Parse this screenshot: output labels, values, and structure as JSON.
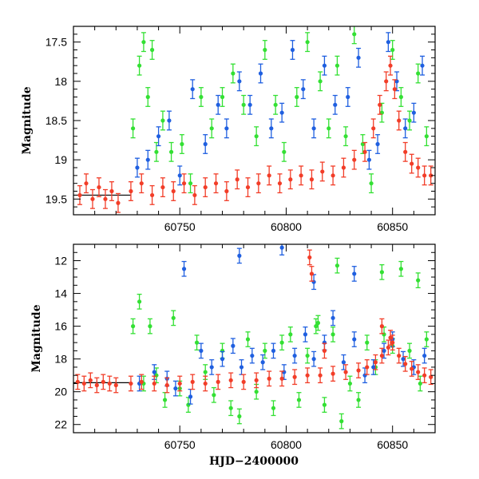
{
  "colors": {
    "blue": "#1f5fe0",
    "green": "#33e033",
    "red": "#f23d28",
    "baseline": "#000000"
  },
  "chart_data": [
    {
      "type": "scatter",
      "title": "",
      "xlabel": "",
      "ylabel": "Magnitude",
      "xlim": [
        60700,
        60870
      ],
      "ylim": [
        17.3,
        19.7
      ],
      "y_inverted": true,
      "xticks": [
        "60750",
        "60800",
        "60850"
      ],
      "yticks": [
        "17.5",
        "18",
        "18.5",
        "19",
        "19.5"
      ],
      "error_bars": true,
      "baseline_magnitude": 19.45,
      "series_colors": [
        "#33e033",
        "#1f5fe0",
        "#f23d28"
      ],
      "series": [
        {
          "color": "#33e033",
          "x": [
            60728,
            60731,
            60733,
            60735,
            60737,
            60739,
            60742,
            60746,
            60751,
            60755,
            60760,
            60765,
            60770,
            60775,
            60780,
            60786,
            60790,
            60795,
            60799,
            60805,
            60810,
            60816,
            60820,
            60824,
            60828,
            60832,
            60836,
            60840,
            60845,
            60850,
            60854,
            60858,
            60862,
            60866
          ],
          "y": [
            18.6,
            17.8,
            17.5,
            18.2,
            17.6,
            18.9,
            18.5,
            18.9,
            18.8,
            19.3,
            18.2,
            18.6,
            18.2,
            17.9,
            18.3,
            18.7,
            17.6,
            18.3,
            18.9,
            18.2,
            17.5,
            18.0,
            18.6,
            17.8,
            18.7,
            17.4,
            18.8,
            19.3,
            18.4,
            17.6,
            18.2,
            18.5,
            17.9,
            18.7
          ]
        },
        {
          "color": "#1f5fe0",
          "x": [
            60730,
            60735,
            60740,
            60745,
            60750,
            60756,
            60762,
            60768,
            60772,
            60778,
            60783,
            60788,
            60793,
            60798,
            60803,
            60808,
            60813,
            60818,
            60823,
            60829,
            60834,
            60839,
            60843,
            60848,
            60852,
            60856,
            60860,
            60864
          ],
          "y": [
            19.1,
            19.0,
            18.7,
            18.5,
            19.2,
            18.1,
            18.8,
            18.3,
            18.6,
            18.0,
            18.3,
            17.9,
            18.6,
            18.4,
            17.6,
            18.1,
            18.6,
            17.8,
            18.3,
            18.2,
            17.7,
            19.0,
            18.8,
            17.5,
            18.0,
            18.6,
            18.4,
            17.8
          ]
        },
        {
          "color": "#f23d28",
          "x": [
            60703,
            60706,
            60709,
            60712,
            60715,
            60718,
            60721,
            60727,
            60732,
            60737,
            60742,
            60747,
            60752,
            60757,
            60762,
            60767,
            60772,
            60777,
            60782,
            60787,
            60792,
            60797,
            60802,
            60807,
            60812,
            60817,
            60822,
            60827,
            60832,
            60837,
            60841,
            60844,
            60847,
            60849,
            60851,
            60853,
            60856,
            60859,
            60862,
            60865,
            60868
          ],
          "y": [
            19.45,
            19.3,
            19.5,
            19.35,
            19.5,
            19.4,
            19.55,
            19.4,
            19.3,
            19.45,
            19.35,
            19.4,
            19.3,
            19.45,
            19.35,
            19.3,
            19.4,
            19.25,
            19.35,
            19.3,
            19.2,
            19.3,
            19.25,
            19.2,
            19.25,
            19.15,
            19.2,
            19.1,
            19.0,
            18.9,
            18.6,
            18.3,
            18.0,
            17.8,
            18.1,
            18.5,
            18.9,
            19.05,
            19.1,
            19.2,
            19.2
          ]
        }
      ]
    },
    {
      "type": "scatter",
      "title": "",
      "xlabel": "HJD−2400000",
      "ylabel": "Magnitude",
      "xlim": [
        60700,
        60870
      ],
      "ylim": [
        11,
        22.5
      ],
      "y_inverted": true,
      "xticks": [
        "60750",
        "60800",
        "60850"
      ],
      "yticks": [
        "12",
        "14",
        "16",
        "18",
        "20",
        "22"
      ],
      "error_bars": true,
      "baseline_magnitude": 19.45,
      "series_colors": [
        "#33e033",
        "#1f5fe0",
        "#f23d28"
      ],
      "series": [
        {
          "color": "#33e033",
          "x": [
            60728,
            60731,
            60733,
            60736,
            60739,
            60743,
            60747,
            60750,
            60754,
            60758,
            60762,
            60766,
            60770,
            60774,
            60778,
            60782,
            60786,
            60790,
            60794,
            60798,
            60802,
            60806,
            60810,
            60814,
            60818,
            60822,
            60826,
            60830,
            60834,
            60838,
            60842,
            60846,
            60850,
            60854,
            60858,
            60862,
            60866,
            60824,
            60845,
            60863,
            60815
          ],
          "y": [
            16.0,
            14.5,
            19.5,
            16.0,
            19.0,
            20.5,
            15.5,
            19.8,
            20.8,
            17.0,
            18.8,
            20.2,
            17.5,
            21.0,
            21.5,
            16.8,
            20.0,
            17.5,
            21.0,
            17.0,
            16.5,
            20.5,
            17.8,
            16.0,
            20.8,
            16.5,
            21.8,
            19.5,
            20.5,
            17.0,
            18.5,
            16.5,
            17.2,
            12.5,
            17.5,
            13.2,
            16.8,
            12.3,
            12.7,
            19.5,
            15.8
          ]
        },
        {
          "color": "#1f5fe0",
          "x": [
            60731,
            60738,
            60744,
            60748,
            60752,
            60755,
            60760,
            60765,
            60770,
            60775,
            60779,
            60784,
            60789,
            60794,
            60799,
            60804,
            60809,
            60813,
            60818,
            60822,
            60827,
            60832,
            60837,
            60841,
            60846,
            60850,
            60855,
            60860,
            60865,
            60778,
            60798,
            60813,
            60832
          ],
          "y": [
            19.5,
            18.8,
            19.2,
            19.8,
            12.5,
            20.3,
            17.5,
            18.5,
            18.0,
            17.2,
            18.5,
            17.8,
            18.2,
            17.5,
            18.8,
            17.8,
            16.5,
            18.0,
            17.0,
            15.5,
            18.2,
            16.8,
            19.0,
            18.5,
            17.5,
            16.8,
            18.0,
            18.5,
            17.8,
            11.7,
            11.2,
            13.3,
            12.8
          ]
        },
        {
          "color": "#f23d28",
          "x": [
            60702,
            60705,
            60708,
            60711,
            60714,
            60717,
            60720,
            60727,
            60732,
            60738,
            60744,
            60750,
            60756,
            60762,
            60768,
            60774,
            60780,
            60786,
            60792,
            60798,
            60804,
            60810,
            60816,
            60822,
            60828,
            60834,
            60838,
            60842,
            60845,
            60848,
            60850,
            60853,
            60856,
            60859,
            60862,
            60865,
            60868,
            60811,
            60812,
            60845,
            60849,
            60818
          ],
          "y": [
            19.4,
            19.5,
            19.3,
            19.6,
            19.4,
            19.5,
            19.6,
            19.5,
            19.4,
            19.5,
            19.6,
            19.5,
            19.4,
            19.5,
            19.4,
            19.3,
            19.4,
            19.3,
            19.2,
            19.2,
            19.1,
            19.0,
            19.0,
            18.9,
            18.8,
            18.7,
            18.5,
            18.2,
            17.8,
            17.3,
            17.0,
            17.8,
            18.3,
            18.6,
            18.8,
            19.0,
            19.1,
            11.8,
            12.8,
            16.0,
            16.7,
            17.5
          ]
        }
      ]
    }
  ]
}
